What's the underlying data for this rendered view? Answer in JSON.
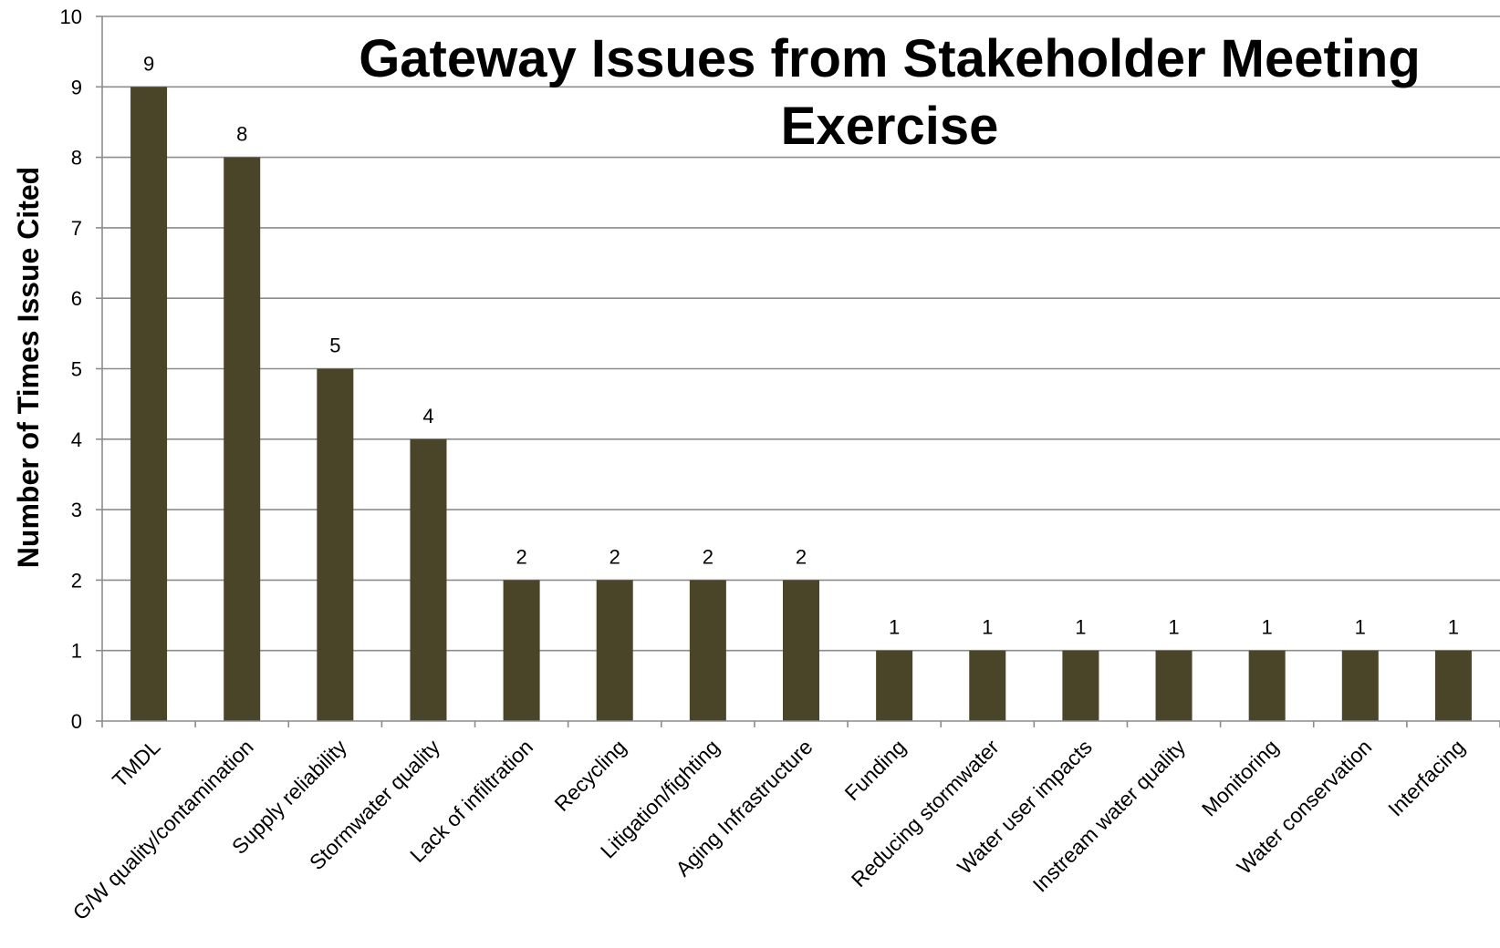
{
  "chart_data": {
    "type": "bar",
    "title_lines": [
      "Gateway Issues from Stakeholder Meeting",
      "Exercise"
    ],
    "xlabel": "",
    "ylabel": "Number of Times Issue Cited",
    "ylim": [
      0,
      10
    ],
    "yticks": [
      "0",
      "1",
      "2",
      "3",
      "4",
      "5",
      "6",
      "7",
      "8",
      "9",
      "10"
    ],
    "grid": true,
    "bar_color": "#4a4428",
    "grid_color": "#8c8c8c",
    "categories": [
      "TMDL",
      "G/W quality/contamination",
      "Supply reliability",
      "Stormwater quality",
      "Lack of infiltration",
      "Recycling",
      "Litigation/fighting",
      "Aging Infrastructure",
      "Funding",
      "Reducing stormwater",
      "Water user impacts",
      "Instream water quality",
      "Monitoring",
      "Water conservation",
      "Interfacing"
    ],
    "values": [
      9,
      8,
      5,
      4,
      2,
      2,
      2,
      2,
      1,
      1,
      1,
      1,
      1,
      1,
      1
    ],
    "data_labels": [
      "9",
      "8",
      "5",
      "4",
      "2",
      "2",
      "2",
      "2",
      "1",
      "1",
      "1",
      "1",
      "1",
      "1",
      "1"
    ]
  }
}
